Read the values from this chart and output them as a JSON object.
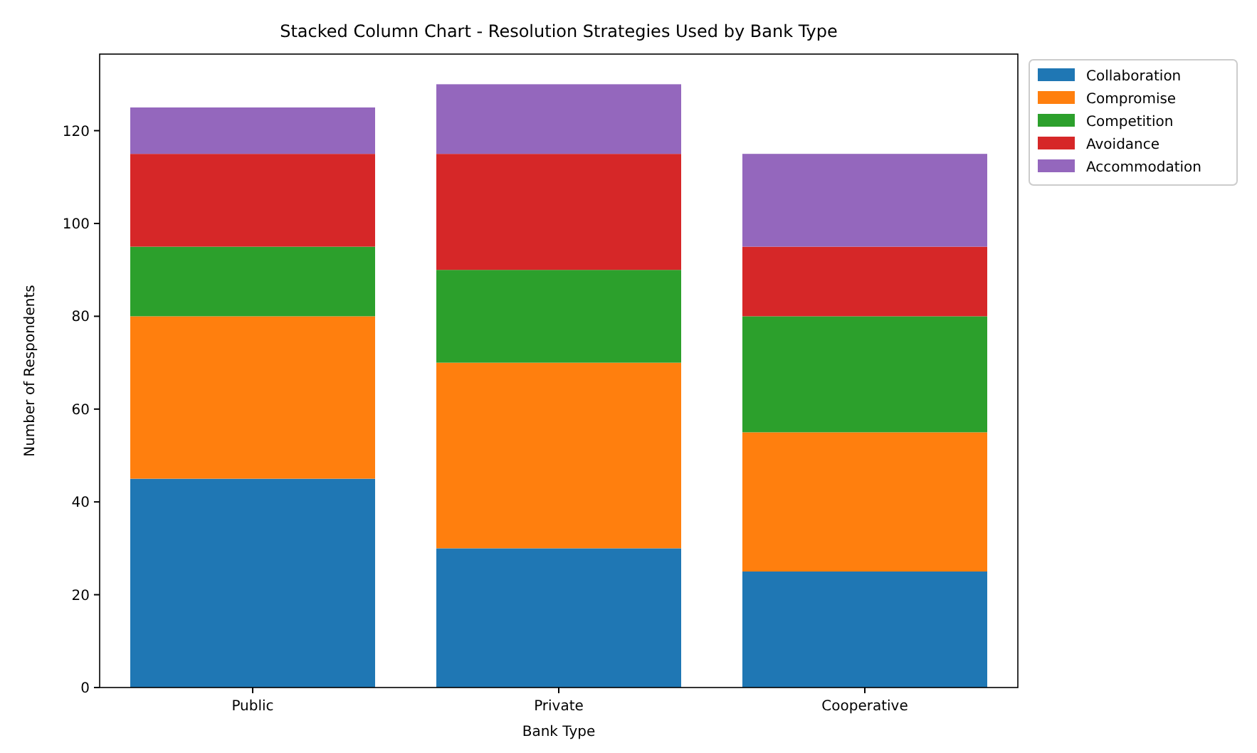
{
  "chart_data": {
    "type": "bar",
    "title": "Stacked Column Chart - Resolution Strategies Used by Bank Type",
    "xlabel": "Bank Type",
    "ylabel": "Number of Respondents",
    "categories": [
      "Public",
      "Private",
      "Cooperative"
    ],
    "stacked": true,
    "ylim": [
      0,
      136.5
    ],
    "yticks": [
      0,
      20,
      40,
      60,
      80,
      100,
      120
    ],
    "legend": "right",
    "series": [
      {
        "name": "Collaboration",
        "color": "#1f77b4",
        "values": [
          45,
          30,
          25
        ]
      },
      {
        "name": "Compromise",
        "color": "#ff7f0e",
        "values": [
          35,
          40,
          30
        ]
      },
      {
        "name": "Competition",
        "color": "#2ca02c",
        "values": [
          15,
          20,
          25
        ]
      },
      {
        "name": "Avoidance",
        "color": "#d62728",
        "values": [
          20,
          25,
          15
        ]
      },
      {
        "name": "Accommodation",
        "color": "#9467bd",
        "values": [
          10,
          15,
          20
        ]
      }
    ]
  }
}
